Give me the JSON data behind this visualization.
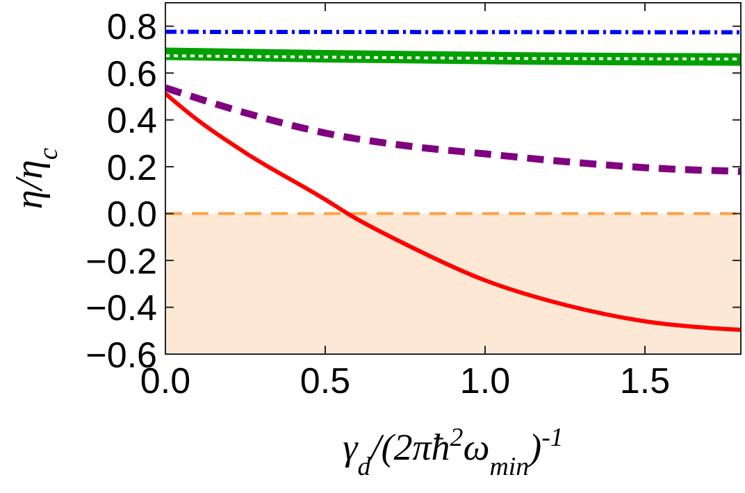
{
  "chart_data": {
    "type": "line",
    "xlabel": "γ$_{d}$/(2πħ$^{2}$ω$_{min}$)$^{-1}$",
    "ylabel": "η/η$_{c}$",
    "xlim": [
      0,
      1.8
    ],
    "ylim": [
      -0.6,
      0.9
    ],
    "xticks": [
      {
        "value": 0,
        "label": "0.0"
      },
      0.5,
      {
        "value": 1,
        "label": "1.0"
      },
      1.5
    ],
    "yticks": [
      -0.6,
      -0.4,
      -0.2,
      {
        "value": 0,
        "label": "0.0"
      },
      0.2,
      0.4,
      0.6,
      0.8
    ],
    "grid": false,
    "series": [
      {
        "color": "#0000ff",
        "line_style": "dashdot",
        "x": [
          0,
          1.8
        ],
        "values": [
          0.776,
          0.774
        ]
      },
      {
        "color": "#00a000",
        "line_style": "solid",
        "x": [
          0,
          0.5,
          1,
          1.5,
          1.8
        ],
        "values": [
          0.682,
          0.672,
          0.664,
          0.659,
          0.658
        ]
      },
      {
        "color": "#ffffff",
        "line_style": "dotted",
        "x": [
          0,
          0.5,
          1,
          1.5,
          1.8
        ],
        "values": [
          0.674,
          0.668,
          0.663,
          0.661,
          0.66
        ]
      },
      {
        "color": "#800080",
        "line_style": "dashed",
        "x": [
          0,
          0.25,
          0.5,
          0.75,
          1,
          1.25,
          1.5,
          1.8
        ],
        "values": [
          0.537,
          0.43,
          0.344,
          0.29,
          0.255,
          0.222,
          0.196,
          0.18
        ]
      },
      {
        "color": "#ff0000",
        "line_style": "solid",
        "x": [
          0,
          0.1,
          0.25,
          0.5,
          0.57,
          0.75,
          1,
          1.25,
          1.5,
          1.8
        ],
        "values": [
          0.512,
          0.4,
          0.26,
          0.06,
          0,
          -0.13,
          -0.285,
          -0.39,
          -0.46,
          -0.496
        ]
      }
    ],
    "ref_lines": [
      {
        "axis": "y",
        "value": 0,
        "color": "#ffa040",
        "line_style": "dashed"
      }
    ],
    "bands": [
      {
        "axis": "y",
        "from": -0.6,
        "to": 0,
        "color": "#fde8d6"
      }
    ]
  }
}
